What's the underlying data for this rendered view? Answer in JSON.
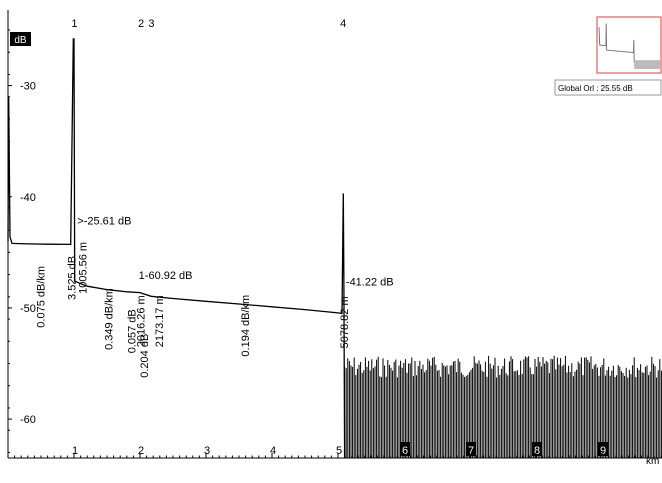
{
  "chart_data": {
    "type": "line",
    "title": "",
    "xlabel": "km",
    "ylabel": "dB",
    "x_range": [
      0,
      10
    ],
    "y_range": [
      -63.5,
      -23.2
    ],
    "y_ticks": [
      {
        "value": -30,
        "label": "-30"
      },
      {
        "value": -40,
        "label": "-40"
      },
      {
        "value": -50,
        "label": "-50"
      },
      {
        "value": -60,
        "label": "-60"
      }
    ],
    "x_ticks": [
      {
        "value": 1,
        "label": "1"
      },
      {
        "value": 2,
        "label": "2"
      },
      {
        "value": 3,
        "label": "3"
      },
      {
        "value": 4,
        "label": "4"
      },
      {
        "value": 5,
        "label": "5"
      },
      {
        "value": 6,
        "label": "6"
      },
      {
        "value": 7,
        "label": "7"
      },
      {
        "value": 8,
        "label": "8"
      },
      {
        "value": 9,
        "label": "9"
      }
    ],
    "trace": [
      [
        0.0,
        -44.0
      ],
      [
        0.01,
        -31.0
      ],
      [
        0.03,
        -43.6
      ],
      [
        0.06,
        -44.2
      ],
      [
        0.3,
        -44.24
      ],
      [
        0.6,
        -44.27
      ],
      [
        0.95,
        -44.29
      ],
      [
        0.99,
        -25.8
      ],
      [
        1.0,
        -25.8
      ],
      [
        1.01,
        -47.6
      ],
      [
        1.2,
        -48.05
      ],
      [
        1.5,
        -48.35
      ],
      [
        1.8,
        -48.55
      ],
      [
        2.0,
        -48.62
      ],
      [
        2.05,
        -48.72
      ],
      [
        2.17,
        -48.95
      ],
      [
        2.5,
        -49.15
      ],
      [
        3.0,
        -49.4
      ],
      [
        3.5,
        -49.65
      ],
      [
        4.0,
        -49.9
      ],
      [
        4.5,
        -50.15
      ],
      [
        5.0,
        -50.45
      ],
      [
        5.06,
        -50.5
      ],
      [
        5.08,
        -39.7
      ],
      [
        5.09,
        -48.0
      ],
      [
        5.1,
        -63.5
      ]
    ],
    "noise_floor": {
      "x_range": [
        5.1,
        10.0
      ],
      "y_min": -63.5,
      "y_max": -54.3
    },
    "events": [
      {
        "number": "1",
        "x": 1.0057
      },
      {
        "number": "2",
        "x": 2.0162
      },
      {
        "number": "3",
        "x": 2.1732
      },
      {
        "number": "4",
        "x": 5.0788
      }
    ],
    "annotations": [
      {
        "text": ">-25.61 dB",
        "x": 1.05,
        "y": -42.5
      },
      {
        "text": "1-60.92 dB",
        "x": 1.98,
        "y": -47.4
      },
      {
        "text": "-41.22 dB",
        "x": 5.12,
        "y": -48.0
      }
    ],
    "vertical_annotations": [
      {
        "text": "0.075 dB/km",
        "x": 0.55,
        "y": -49.0
      },
      {
        "text": "3.525 dB",
        "x": 1.02,
        "y": -47.3
      },
      {
        "text": "1005.56 m",
        "x": 1.19,
        "y": -46.4
      },
      {
        "text": "0.349 dB/km",
        "x": 1.58,
        "y": -51.0
      },
      {
        "text": "0.057 dB",
        "x": 1.93,
        "y": -52.1
      },
      {
        "text": "0.204 dB",
        "x": 2.12,
        "y": -54.3
      },
      {
        "text": "2016.26 m",
        "x": 2.07,
        "y": -51.2
      },
      {
        "text": "2173.17 m",
        "x": 2.35,
        "y": -51.2
      },
      {
        "text": "0.194 dB/km",
        "x": 3.65,
        "y": -51.6
      },
      {
        "text": "5078.82 m",
        "x": 5.15,
        "y": -51.3
      }
    ],
    "grid": false,
    "legend": "none",
    "overview": {
      "label": "Global Orl : 25.55 dB"
    }
  },
  "colors": {
    "trace": "#000000",
    "overview_border": "#e06060",
    "overview_trace": "#777777"
  }
}
